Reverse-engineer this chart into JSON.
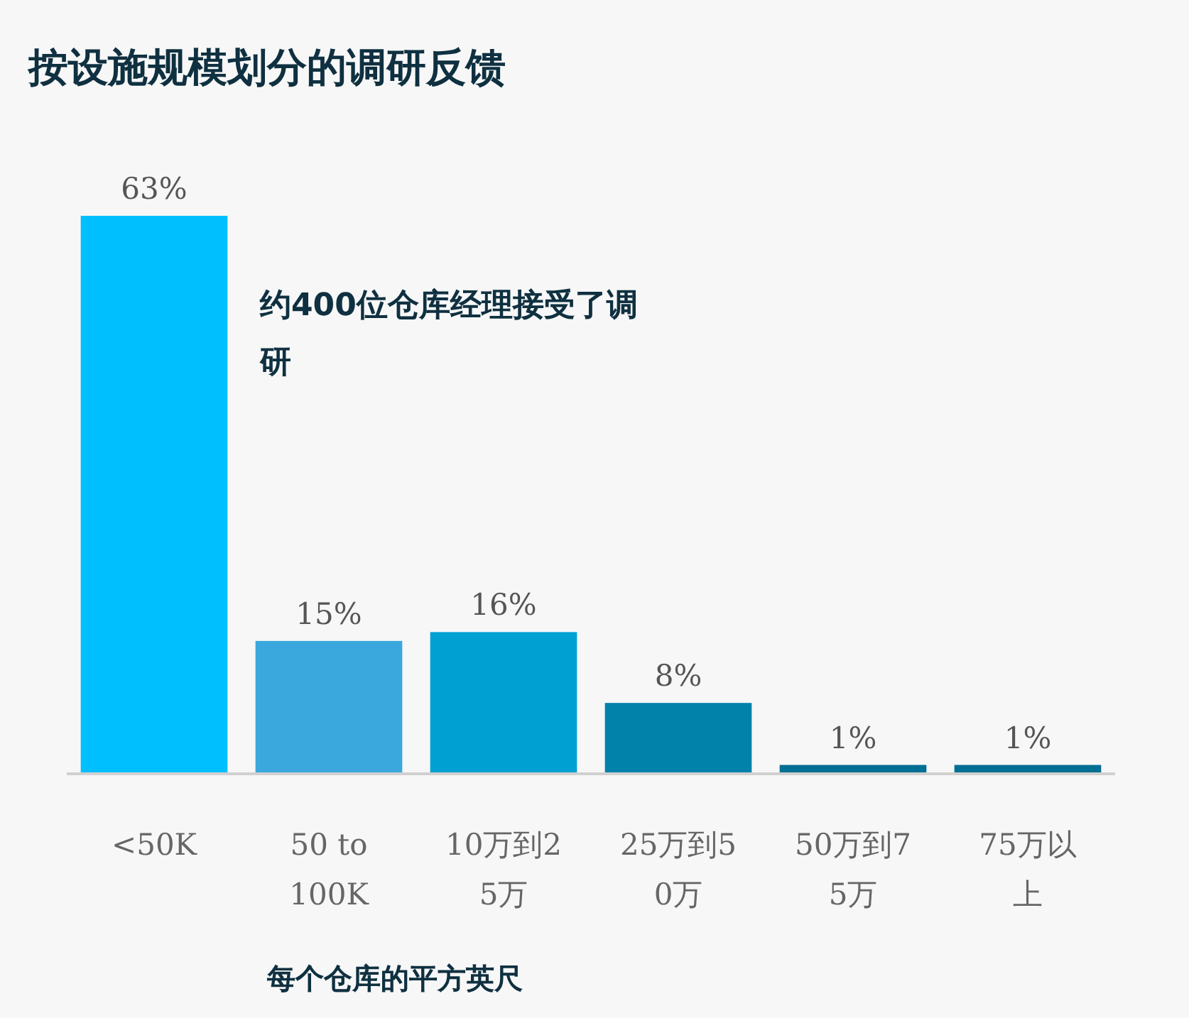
{
  "chart_data": {
    "type": "bar",
    "title": "按设施规模划分的调研反馈",
    "xlabel": "每个仓库的平方英尺",
    "categories": [
      "<50K",
      "50 to 100K",
      "10万到25万",
      "25万到50万",
      "50万到75万",
      "75万以上"
    ],
    "values": [
      63,
      15,
      16,
      8,
      1,
      1
    ],
    "value_labels": [
      "63%",
      "15%",
      "16%",
      "8%",
      "1%",
      "1%"
    ],
    "colors": [
      "#00bfff",
      "#3aa8dc",
      "#00a0d2",
      "#0082ab",
      "#006f94",
      "#006f94"
    ],
    "annotations": [
      "约400位仓库经理接受了调研"
    ]
  }
}
